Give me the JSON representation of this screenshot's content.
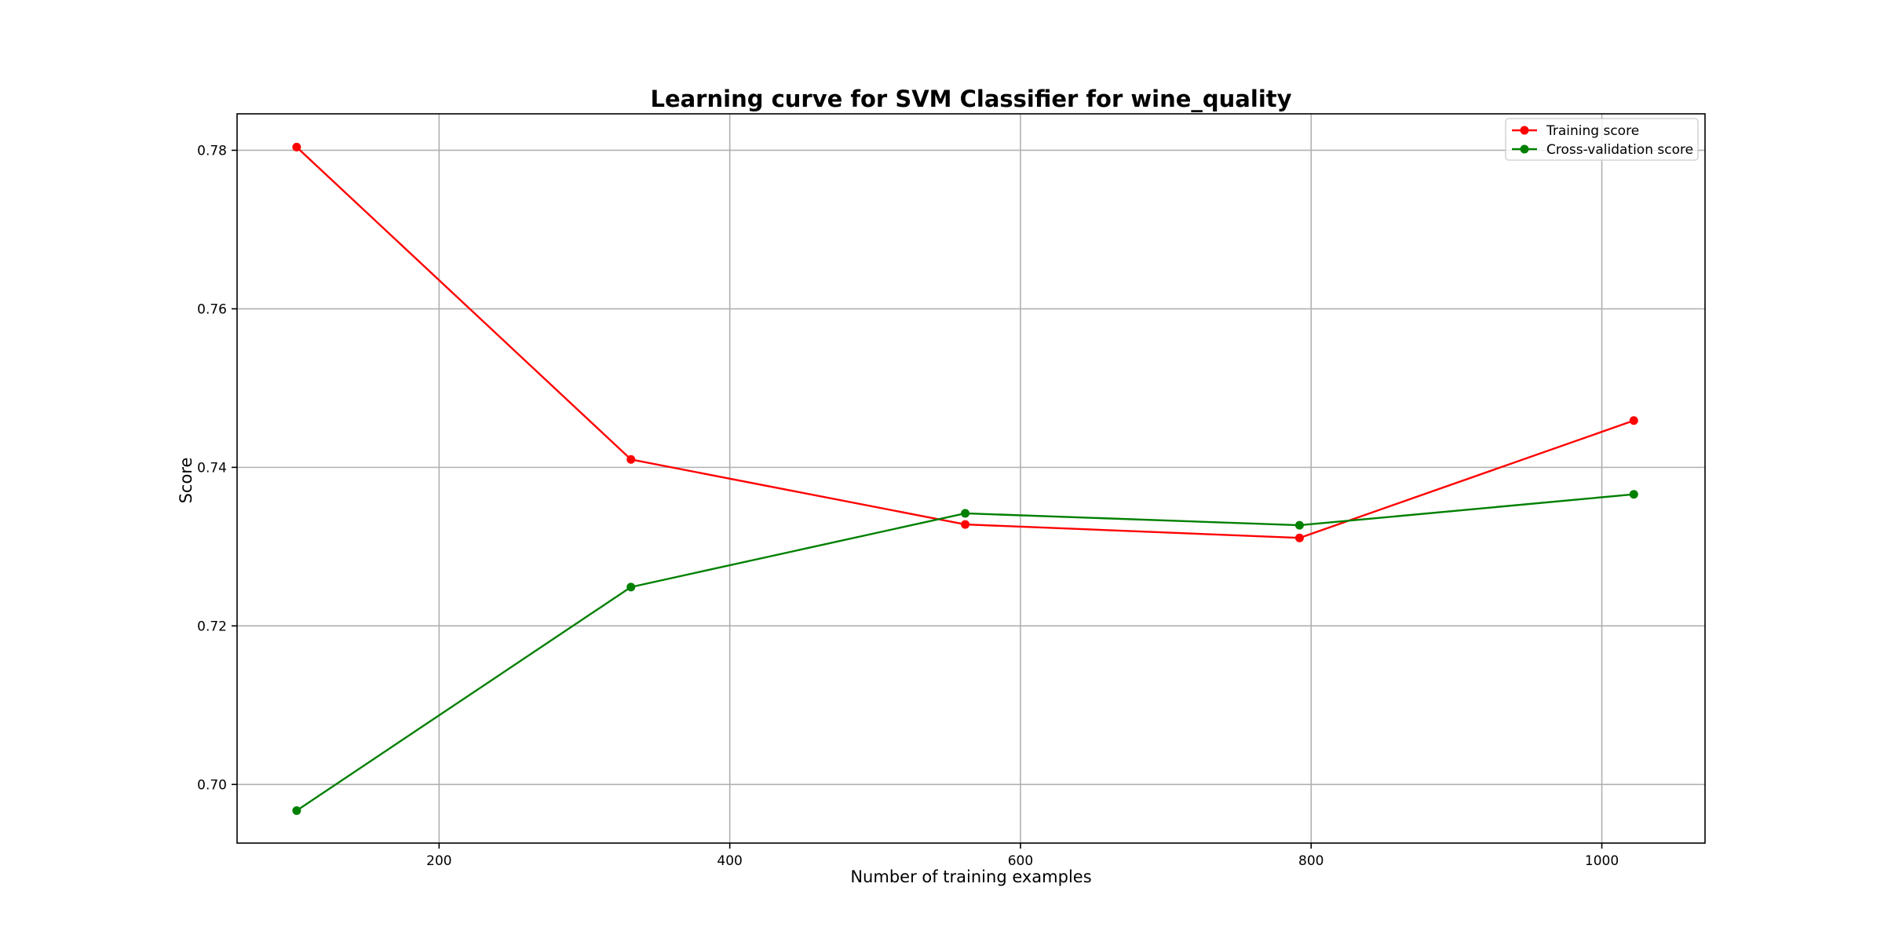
{
  "chart_data": {
    "type": "line",
    "title": "Learning curve for SVM Classifier for wine_quality",
    "xlabel": "Number of training examples",
    "ylabel": "Score",
    "xlim": [
      61,
      1071
    ],
    "ylim": [
      0.6926,
      0.7846
    ],
    "xticks": [
      200,
      400,
      600,
      800,
      1000
    ],
    "yticks": [
      0.7,
      0.72,
      0.74,
      0.76,
      0.78
    ],
    "xtick_labels": [
      "200",
      "400",
      "600",
      "800",
      "1000"
    ],
    "ytick_labels": [
      "0.70",
      "0.72",
      "0.74",
      "0.76",
      "0.78"
    ],
    "grid": true,
    "legend_position": "top-right",
    "x": [
      102,
      332,
      562,
      792,
      1022
    ],
    "series": [
      {
        "name": "Training score",
        "color": "#ff0000",
        "values": [
          0.7804,
          0.741,
          0.7328,
          0.7311,
          0.7459
        ]
      },
      {
        "name": "Cross-validation score",
        "color": "#008000",
        "values": [
          0.6967,
          0.7249,
          0.7342,
          0.7327,
          0.7366
        ]
      }
    ]
  }
}
